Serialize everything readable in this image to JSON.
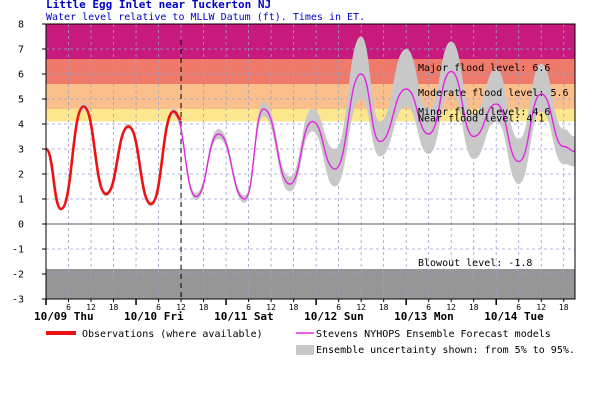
{
  "chart_data": {
    "type": "line",
    "title": "Little Egg Inlet near Tuckerton NJ",
    "subtitle": "Water level relative to MLLW Datum (ft). Times in ET.",
    "ylim": [
      -3,
      8
    ],
    "y_ticks": [
      -3,
      -2,
      -1,
      0,
      1,
      2,
      3,
      4,
      5,
      6,
      7,
      8
    ],
    "x_range_hours": [
      0,
      141
    ],
    "x_hour_ticks": [
      "0",
      "6",
      "12",
      "18"
    ],
    "day_labels": [
      "10/09 Thu",
      "10/10 Fri",
      "10/11 Sat",
      "10/12 Sun",
      "10/13 Mon",
      "10/14 Tue"
    ],
    "now_hour": 36,
    "grid": true,
    "thresholds": [
      {
        "label": "Major flood level: 6.6",
        "value": 6.6,
        "top": 8,
        "color": "#c8197d"
      },
      {
        "label": "Moderate flood level: 5.6",
        "value": 5.6,
        "top": 6.6,
        "color": "#f07a6a"
      },
      {
        "label": "Minor flood level: 4.6",
        "value": 4.6,
        "top": 5.6,
        "color": "#fbbf8c"
      },
      {
        "label": "Near flood level: 4.1",
        "value": 4.1,
        "top": 4.6,
        "color": "#fde78e"
      },
      {
        "label": "Blowout level: -1.8",
        "value": -1.8,
        "top": -1.8,
        "color": "#969696"
      }
    ],
    "series": [
      {
        "name": "Observations (where available)",
        "color": "#ee1111",
        "x": [
          0,
          4,
          10,
          16,
          22,
          28,
          34,
          36
        ],
        "y": [
          3.0,
          0.6,
          4.7,
          1.2,
          3.9,
          0.8,
          4.5,
          4.2
        ]
      },
      {
        "name": "Stevens NYHOPS Ensemble Forecast models",
        "color": "#e028e0",
        "x": [
          0,
          4,
          10,
          16,
          22,
          28,
          34,
          40,
          46,
          53,
          58,
          65,
          71,
          77,
          84,
          89,
          96,
          102,
          108,
          114,
          120,
          126,
          132,
          138,
          141
        ],
        "y": [
          3.0,
          0.6,
          4.7,
          1.2,
          3.9,
          0.8,
          4.5,
          1.1,
          3.6,
          1.0,
          4.6,
          1.6,
          4.1,
          2.2,
          6.0,
          3.3,
          5.4,
          3.6,
          6.1,
          3.5,
          4.8,
          2.5,
          5.2,
          3.1,
          2.9
        ]
      }
    ],
    "uncertainty_band": {
      "name": "Ensemble uncertainty shown: from 5% to 95%.",
      "color": "#c8c8c8",
      "x": [
        0,
        4,
        10,
        16,
        22,
        28,
        34,
        40,
        46,
        53,
        58,
        65,
        71,
        77,
        84,
        89,
        96,
        102,
        108,
        114,
        120,
        126,
        132,
        138,
        141
      ],
      "lower": [
        2.95,
        0.55,
        4.55,
        1.1,
        3.8,
        0.7,
        4.35,
        0.95,
        3.4,
        0.85,
        4.3,
        1.3,
        3.7,
        1.5,
        5.0,
        2.7,
        4.7,
        2.8,
        5.3,
        2.6,
        4.1,
        1.6,
        4.5,
        2.4,
        2.3
      ],
      "upper": [
        3.05,
        0.65,
        4.85,
        1.3,
        4.0,
        0.9,
        4.65,
        1.25,
        3.8,
        1.15,
        4.9,
        1.9,
        4.6,
        3.0,
        7.5,
        4.1,
        7.0,
        4.6,
        7.3,
        4.4,
        6.2,
        3.4,
        6.4,
        3.8,
        3.5
      ]
    }
  }
}
